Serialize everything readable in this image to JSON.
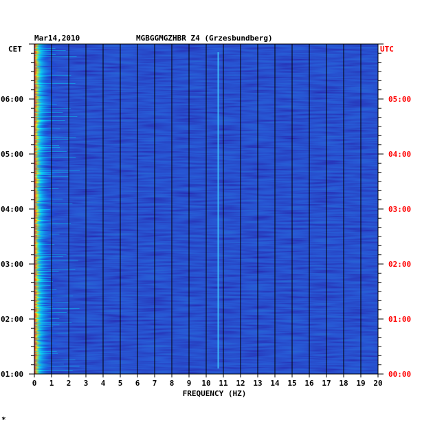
{
  "chart_data": {
    "type": "heatmap",
    "date": "Mar14,2010",
    "station": "MGBGGMGZHBR Z4 (Grzesbundberg)",
    "left_timezone": "CET",
    "right_timezone": "UTC",
    "xlabel": "FREQUENCY (HZ)",
    "xlim": [
      0,
      20
    ],
    "x_ticks": [
      0,
      1,
      2,
      3,
      4,
      5,
      6,
      7,
      8,
      9,
      10,
      11,
      12,
      13,
      14,
      15,
      16,
      17,
      18,
      19,
      20
    ],
    "y_left_ticks": [
      "01:00",
      "02:00",
      "03:00",
      "04:00",
      "05:00",
      "06:00"
    ],
    "y_right_ticks": [
      "00:00",
      "01:00",
      "02:00",
      "03:00",
      "04:00",
      "05:00"
    ],
    "time_range_cet": [
      "01:00",
      "07:00"
    ],
    "grid": true,
    "colormap": [
      "#00007f",
      "#0000ff",
      "#00a0ff",
      "#00ffff",
      "#7fff7f",
      "#ffff00",
      "#ff7f00",
      "#ff0000",
      "#7f0000"
    ],
    "background_color": "#0a0aa0",
    "right_axis_color": "#ff0000",
    "features": [
      {
        "kind": "low-frequency energy band",
        "freq_range_hz": [
          0,
          1.5
        ]
      },
      {
        "kind": "narrow spectral line",
        "freq_hz": 10.7
      },
      {
        "kind": "faint line",
        "freq_hz": 7.0
      }
    ]
  },
  "footer_mark": "*"
}
